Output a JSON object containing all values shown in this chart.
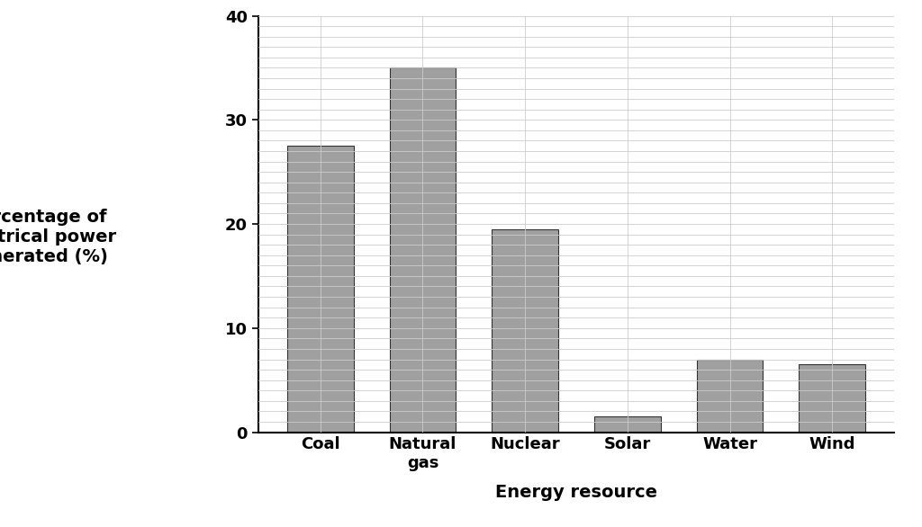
{
  "categories": [
    "Coal",
    "Natural\ngas",
    "Nuclear",
    "Solar",
    "Water",
    "Wind"
  ],
  "values": [
    27.5,
    35.0,
    19.5,
    1.5,
    7.0,
    6.5
  ],
  "bar_color": "#a0a0a0",
  "bar_edgecolor": "#333333",
  "xlabel": "Energy resource",
  "ylabel_lines": [
    "Percentage of",
    "electrical power",
    "generated (%)"
  ],
  "ylim": [
    0,
    40
  ],
  "yticks": [
    0,
    10,
    20,
    30,
    40
  ],
  "background_color": "#ffffff",
  "grid_color": "#cccccc",
  "bar_width": 0.65,
  "ylabel_fontsize": 14,
  "xlabel_fontsize": 14,
  "tick_fontsize": 13,
  "font_weight": "bold"
}
